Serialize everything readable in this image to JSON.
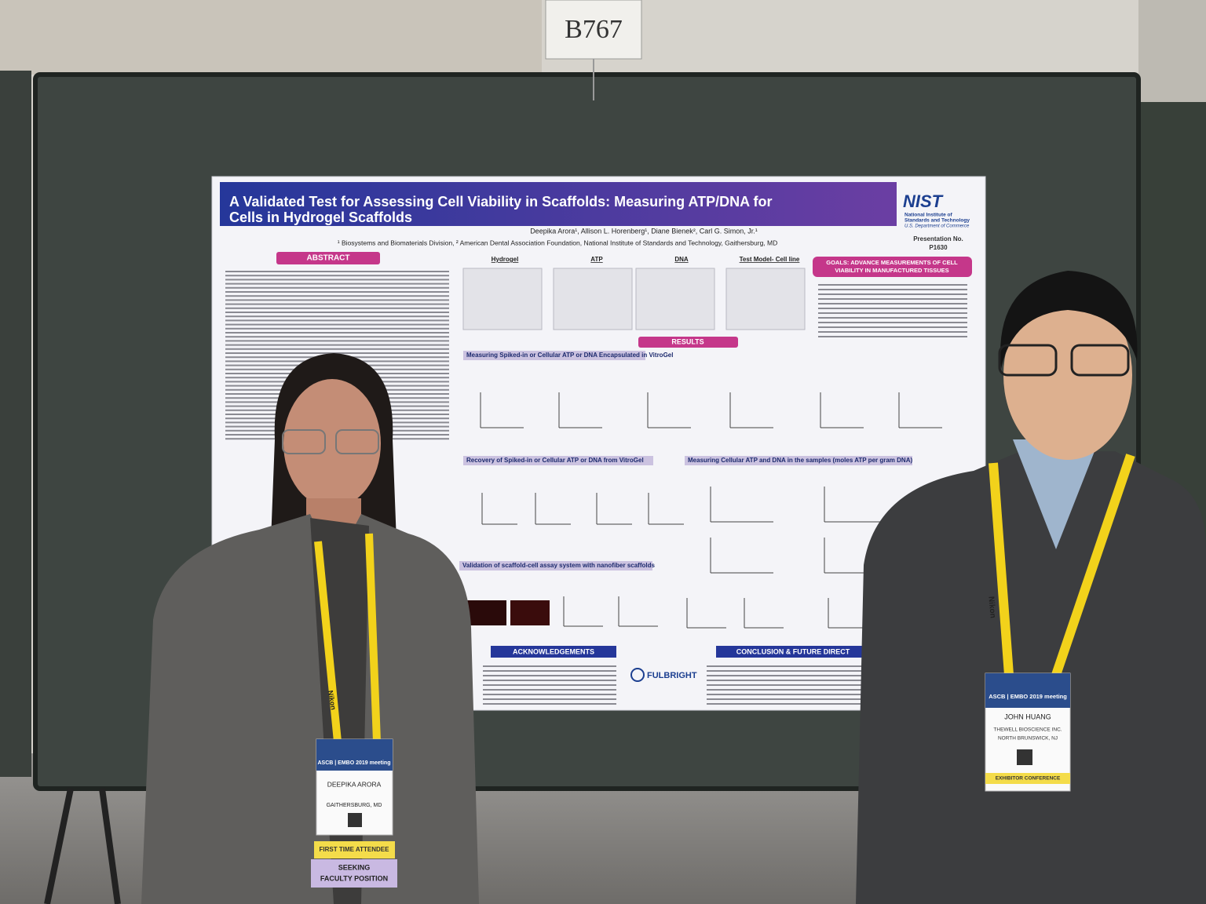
{
  "sign": "B767",
  "poster": {
    "title_lines": [
      "A Validated Test for Assessing Cell Viability in Scaffolds: Measuring ATP/DNA for",
      "Cells in Hydrogel Scaffolds"
    ],
    "authors": "Deepika Arora¹, Allison L. Horenberg¹, Diane Bienek², Carl G. Simon, Jr.¹",
    "affiliations": "¹ Biosystems and Biomaterials Division, ² American Dental Association Foundation, National Institute of Standards and Technology, Gaithersburg, MD",
    "logo": "NIST",
    "logo_lines": [
      "National Institute of",
      "Standards and Technology",
      "U.S. Department of Commerce"
    ],
    "presentation_label": "Presentation No.",
    "presentation_number": "P1630",
    "abstract_heading": "ABSTRACT",
    "column_headings": [
      "Hydrogel",
      "ATP",
      "DNA",
      "Test Model- Cell line"
    ],
    "goals_lines": [
      "GOALS: ADVANCE MEASUREMENTS OF CELL",
      "VIABILITY IN MANUFACTURED TISSUES"
    ],
    "results_heading": "RESULTS",
    "subsections": [
      "Measuring Spiked-in or Cellular ATP or DNA Encapsulated in VitroGel",
      "Recovery of Spiked-in or Cellular ATP or DNA from VitroGel",
      "Measuring Cellular ATP and DNA in the samples (moles ATP per gram DNA)",
      "Validation of scaffold-cell assay system with nanofiber scaffolds"
    ],
    "acknowledgements_heading": "ACKNOWLEDGEMENTS",
    "conclusion_heading": "CONCLUSION & FUTURE DIRECT",
    "sponsor": "FULBRIGHT"
  },
  "badges": [
    {
      "meeting": "ASCB | EMBO 2019 meeting",
      "name": "DEEPIKA ARORA",
      "location": "GAITHERSBURG, MD",
      "ribbons": [
        "FIRST TIME ATTENDEE",
        "SEEKING",
        "FACULTY POSITION"
      ]
    },
    {
      "meeting": "ASCB | EMBO 2019 meeting",
      "name": "JOHN HUANG",
      "company": "THEWELL BIOSCIENCE INC.",
      "location": "NORTH BRUNSWICK, NJ",
      "ribbons": [
        "EXHIBITOR CONFERENCE"
      ]
    }
  ],
  "lanyard": "Nikon"
}
